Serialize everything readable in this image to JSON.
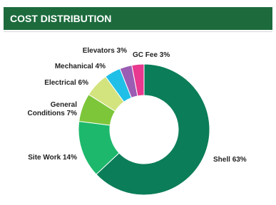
{
  "chart_data": {
    "type": "donut",
    "title": "COST DISTRIBUTION",
    "categories": [
      "Shell",
      "Site Work",
      "General Conditions",
      "Electrical",
      "Mechanical",
      "Elevators",
      "GC Fee"
    ],
    "values": [
      63,
      14,
      7,
      6,
      4,
      3,
      3
    ],
    "value_labels": [
      "63%",
      "14%",
      "7%",
      "6%",
      "4%",
      "3%",
      "3%"
    ],
    "colors": [
      "#0b7d58",
      "#1db86c",
      "#7dc63a",
      "#d3e37e",
      "#20bfe7",
      "#9b5cb4",
      "#e8388f"
    ]
  }
}
